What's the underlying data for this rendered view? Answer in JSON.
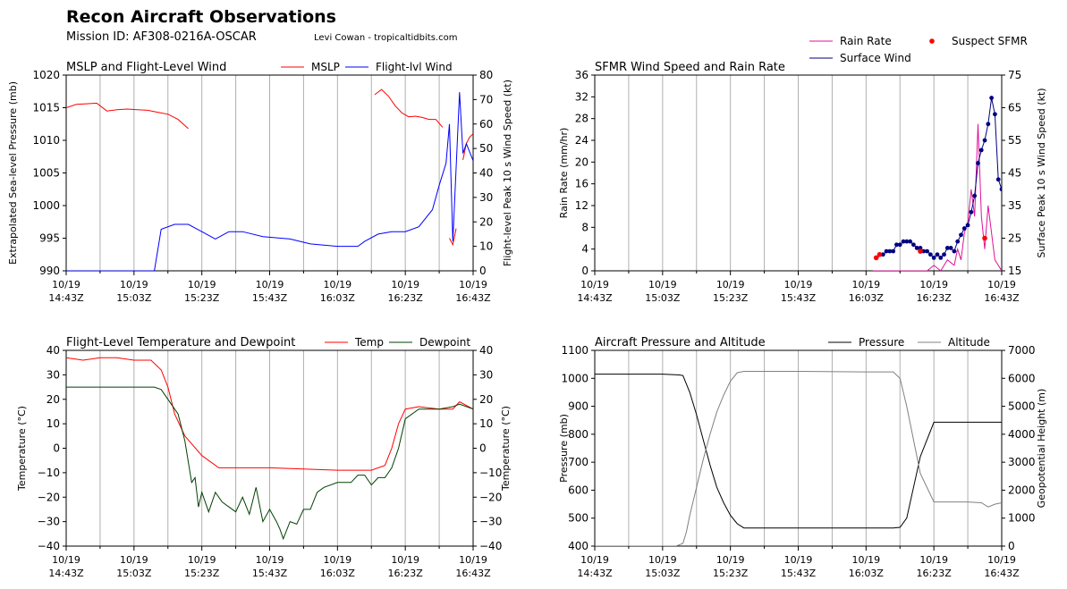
{
  "header": {
    "title": "Recon Aircraft Observations",
    "mission": "Mission ID: AF308-0216A-OSCAR",
    "credit": "Levi Cowan - tropicaltidbits.com"
  },
  "time_ticks": [
    [
      "10/19",
      "14:43Z"
    ],
    [
      "10/19",
      "15:03Z"
    ],
    [
      "10/19",
      "15:23Z"
    ],
    [
      "10/19",
      "15:43Z"
    ],
    [
      "10/19",
      "16:03Z"
    ],
    [
      "10/19",
      "16:23Z"
    ],
    [
      "10/19",
      "16:43Z"
    ]
  ],
  "chart_data": [
    {
      "type": "line",
      "title": "MSLP and Flight-Level Wind",
      "xlabel": "",
      "ylabel": "Extrapolated Sea-level Pressure (mb)",
      "y2label": "Flight-level Peak 10 s Wind Speed (kt)",
      "xlim": [
        0,
        120
      ],
      "ylim": [
        990,
        1020
      ],
      "y2lim": [
        0,
        80
      ],
      "yticks": [
        990,
        995,
        1000,
        1005,
        1010,
        1015,
        1020
      ],
      "y2ticks": [
        0,
        10,
        20,
        30,
        40,
        50,
        60,
        70,
        80
      ],
      "grid": "vertical",
      "legend": "top-right",
      "series": [
        {
          "name": "MSLP",
          "axis": "left",
          "color": "#ff0000",
          "x": [
            0,
            3,
            6,
            9,
            12,
            15,
            18,
            21,
            24,
            27,
            30,
            33,
            36
          ],
          "values": [
            1015.0,
            1015.5,
            1015.6,
            1015.7,
            1014.5,
            1014.7,
            1014.8,
            1014.7,
            1014.6,
            1014.3,
            1014.0,
            1013.2,
            1011.8
          ],
          "segments": [
            {
              "x": [
                0,
                3,
                6,
                9,
                12,
                15,
                18,
                21,
                24,
                27,
                30,
                33,
                36
              ],
              "values": [
                1015.0,
                1015.5,
                1015.6,
                1015.7,
                1014.5,
                1014.7,
                1014.8,
                1014.7,
                1014.6,
                1014.3,
                1014.0,
                1013.2,
                1011.8
              ]
            },
            {
              "x": [
                91,
                93,
                95,
                97,
                99,
                101,
                103,
                105,
                107,
                109,
                111
              ],
              "values": [
                1017.0,
                1017.8,
                1016.8,
                1015.3,
                1014.2,
                1013.6,
                1013.7,
                1013.5,
                1013.2,
                1013.2,
                1012.0
              ]
            },
            {
              "x": [
                113,
                114,
                115
              ],
              "values": [
                995.0,
                994.0,
                996.5
              ]
            },
            {
              "x": [
                117,
                118,
                119,
                120
              ],
              "values": [
                1007.0,
                1009.5,
                1010.5,
                1011.0
              ]
            }
          ]
        },
        {
          "name": "Flight-lvl Wind",
          "axis": "right",
          "color": "#0000ff",
          "x": [
            0,
            20,
            26,
            28,
            32,
            36,
            40,
            44,
            48,
            52,
            58,
            66,
            72,
            80,
            86,
            88,
            92,
            96,
            100,
            104,
            108,
            110,
            112,
            113,
            114,
            116,
            117,
            118,
            120
          ],
          "values": [
            0,
            0,
            0,
            17,
            19,
            19,
            16,
            13,
            16,
            16,
            14,
            13,
            11,
            10,
            10,
            12,
            15,
            16,
            16,
            18,
            25,
            35,
            44,
            60,
            12,
            73,
            48,
            52,
            45
          ]
        }
      ]
    },
    {
      "type": "line",
      "title": "SFMR Wind Speed and Rain Rate",
      "xlabel": "",
      "ylabel": "Rain Rate (mm/hr)",
      "y2label": "Surface Peak 10 s Wind Speed (kt)",
      "xlim": [
        0,
        120
      ],
      "ylim": [
        0,
        36
      ],
      "y2lim": [
        15,
        75
      ],
      "yticks": [
        0,
        4,
        8,
        12,
        16,
        20,
        24,
        28,
        32,
        36
      ],
      "y2ticks": [
        15,
        25,
        35,
        45,
        55,
        65,
        75
      ],
      "grid": "vertical",
      "legend": "above-right",
      "series": [
        {
          "name": "Rain Rate",
          "axis": "left",
          "color": "#e0129a",
          "x": [
            82,
            86,
            90,
            94,
            98,
            100,
            102,
            104,
            106,
            107,
            108,
            109,
            110,
            111,
            112,
            113,
            114,
            115,
            116,
            117,
            118,
            119,
            120
          ],
          "values": [
            0,
            0,
            0,
            0,
            0,
            1,
            0,
            2,
            1,
            4,
            2,
            7,
            9,
            15,
            10,
            27,
            10,
            4,
            12,
            7,
            2,
            1,
            0
          ]
        },
        {
          "name": "Surface Wind",
          "axis": "right",
          "color": "#000080",
          "x": [
            83,
            85,
            86,
            87,
            88,
            89,
            90,
            91,
            92,
            93,
            94,
            95,
            96,
            97,
            98,
            99,
            100,
            101,
            102,
            103,
            104,
            105,
            106,
            107,
            108,
            109,
            110,
            111,
            112,
            113,
            114,
            115,
            116,
            117,
            118,
            119,
            120
          ],
          "values": [
            19,
            20,
            21,
            21,
            21,
            23,
            23,
            24,
            24,
            24,
            23,
            22,
            22,
            21,
            21,
            20,
            19,
            20,
            19,
            20,
            22,
            22,
            21,
            24,
            26,
            28,
            29,
            33,
            38,
            48,
            52,
            55,
            60,
            68,
            63,
            43,
            40
          ]
        },
        {
          "name": "Suspect SFMR",
          "axis": "right",
          "color": "#ff0000",
          "marker": "dot",
          "x": [
            83,
            84,
            96,
            115
          ],
          "values": [
            19,
            20,
            21,
            25
          ]
        }
      ]
    },
    {
      "type": "line",
      "title": "Flight-Level Temperature and Dewpoint",
      "xlabel": "",
      "ylabel": "Temperature ($^\\circ C$)",
      "y2label": "Temperature ($^\\circ C$)",
      "xlim": [
        0,
        120
      ],
      "ylim": [
        -40,
        40
      ],
      "yticks": [
        -40,
        -30,
        -20,
        -10,
        0,
        10,
        20,
        30,
        40
      ],
      "grid": "vertical",
      "legend": "top-right",
      "series": [
        {
          "name": "Temp",
          "color": "#ff0000",
          "x": [
            0,
            5,
            10,
            15,
            20,
            25,
            28,
            30,
            32,
            35,
            40,
            45,
            50,
            55,
            60,
            70,
            80,
            90,
            94,
            96,
            98,
            100,
            104,
            110,
            114,
            116,
            120
          ],
          "values": [
            37,
            36,
            37,
            37,
            36,
            36,
            32,
            25,
            14,
            5,
            -3,
            -8,
            -8,
            -8,
            -8,
            -8.5,
            -9,
            -9,
            -7,
            0,
            10,
            16,
            17,
            16,
            16,
            19,
            16
          ]
        },
        {
          "name": "Dewpoint",
          "color": "#004000",
          "x": [
            0,
            10,
            20,
            26,
            28,
            30,
            33,
            35,
            37,
            38,
            39,
            40,
            42,
            44,
            46,
            48,
            50,
            52,
            54,
            56,
            58,
            60,
            62,
            63,
            64,
            66,
            68,
            70,
            72,
            74,
            76,
            80,
            84,
            86,
            88,
            90,
            92,
            94,
            96,
            98,
            100,
            104,
            110,
            114,
            116,
            120
          ],
          "values": [
            25,
            25,
            25,
            25,
            24,
            20,
            14,
            3,
            -14,
            -12,
            -24,
            -18,
            -26,
            -18,
            -22,
            -24,
            -26,
            -20,
            -27,
            -16,
            -30,
            -25,
            -30,
            -33,
            -37,
            -30,
            -31,
            -25,
            -25,
            -18,
            -16,
            -14,
            -14,
            -11,
            -11,
            -15,
            -12,
            -12,
            -8,
            0,
            12,
            16,
            16,
            17,
            18,
            16
          ]
        }
      ]
    },
    {
      "type": "line",
      "title": "Aircraft Pressure and Altitude",
      "xlabel": "",
      "ylabel": "Pressure (mb)",
      "y2label": "Geopotential Height (m)",
      "xlim": [
        0,
        120
      ],
      "ylim": [
        400,
        1100
      ],
      "y2lim": [
        0,
        7000
      ],
      "yticks": [
        400,
        500,
        600,
        700,
        800,
        900,
        1000,
        1100
      ],
      "y2ticks": [
        0,
        1000,
        2000,
        3000,
        4000,
        5000,
        6000,
        7000
      ],
      "grid": "vertical",
      "legend": "top-right",
      "series": [
        {
          "name": "Pressure",
          "axis": "left",
          "color": "#000000",
          "x": [
            0,
            20,
            25,
            26,
            28,
            30,
            32,
            34,
            36,
            38,
            40,
            42,
            44,
            48,
            60,
            80,
            88,
            90,
            92,
            94,
            96,
            100,
            110,
            120
          ],
          "values": [
            1015,
            1015,
            1012,
            1010,
            950,
            870,
            780,
            690,
            610,
            555,
            510,
            480,
            465,
            465,
            465,
            465,
            465,
            467,
            500,
            610,
            720,
            843,
            843,
            843
          ]
        },
        {
          "name": "Altitude",
          "axis": "right",
          "color": "#808080",
          "x": [
            0,
            20,
            24,
            26,
            27,
            28,
            30,
            32,
            34,
            36,
            38,
            40,
            42,
            44,
            48,
            60,
            80,
            88,
            90,
            92,
            94,
            96,
            100,
            110,
            114,
            116,
            118,
            120
          ],
          "values": [
            0,
            0,
            0,
            100,
            500,
            1100,
            2100,
            3100,
            4000,
            4800,
            5400,
            5900,
            6200,
            6250,
            6250,
            6250,
            6230,
            6230,
            6000,
            5000,
            3800,
            2600,
            1580,
            1580,
            1550,
            1400,
            1500,
            1550
          ]
        }
      ]
    }
  ]
}
